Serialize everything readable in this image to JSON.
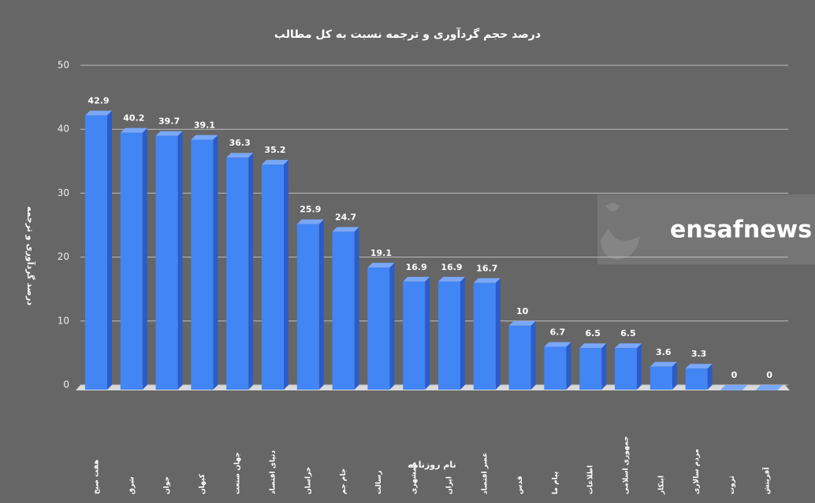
{
  "chart_data": {
    "type": "bar",
    "title": "درصد حجم گردآوری و ترجمه نسبت به کل مطالب",
    "x_label": "نام روزنامه",
    "y_label": "درصد گردآوری و ترجمه",
    "watermark": "ensafnews",
    "categories": [
      "هفت صبح",
      "شرق",
      "جوان",
      "کیهان",
      "جهان صنعت",
      "دنیای اقتصاد",
      "خراسان",
      "جام جم",
      "رسالت",
      "همشهری",
      "ایران",
      "عصر اقتصاد",
      "قدس",
      "پیام ما",
      "اطلاعات",
      "جمهوری اسلامی",
      "ابتکار",
      "مردم سالاری",
      "ثروت",
      "آفرینش"
    ],
    "values": [
      42.9,
      40.2,
      39.7,
      39.1,
      36.3,
      35.2,
      25.9,
      24.7,
      19.1,
      16.9,
      16.9,
      16.7,
      10,
      6.7,
      6.5,
      6.5,
      3.6,
      3.3,
      0,
      0
    ],
    "color": "#4285f4",
    "ylim": [
      0,
      50
    ],
    "yticks": [
      0,
      10,
      20,
      30,
      40,
      50
    ],
    "grid": true
  }
}
